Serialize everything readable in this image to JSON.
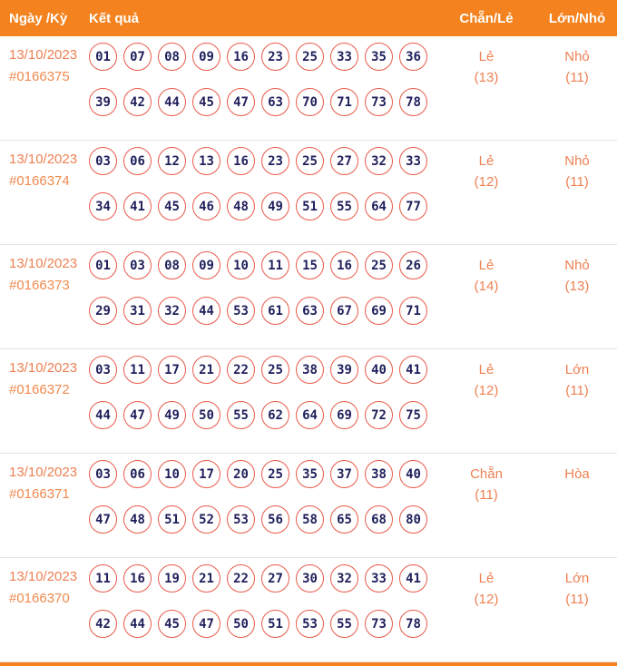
{
  "header": {
    "bg_color": "#F4831F",
    "columns": {
      "date": "Ngày /Kỳ",
      "results": "Kết quả",
      "parity": "Chẵn/Lẻ",
      "size": "Lớn/Nhỏ"
    }
  },
  "colors": {
    "accent_orange": "#F4831F",
    "text_salmon": "#EE8153",
    "ball_border": "#E85A4A",
    "ball_text": "#1F1F5C",
    "divider": "#E3E3E3"
  },
  "rows": [
    {
      "date": "13/10/2023",
      "draw_id": "#0166375",
      "numbers_line1": [
        "01",
        "07",
        "08",
        "09",
        "16",
        "23",
        "25",
        "33",
        "35",
        "36"
      ],
      "numbers_line2": [
        "39",
        "42",
        "44",
        "45",
        "47",
        "63",
        "70",
        "71",
        "73",
        "78"
      ],
      "parity": "Lẻ",
      "parity_count": "(13)",
      "size": "Nhỏ",
      "size_count": "(11)"
    },
    {
      "date": "13/10/2023",
      "draw_id": "#0166374",
      "numbers_line1": [
        "03",
        "06",
        "12",
        "13",
        "16",
        "23",
        "25",
        "27",
        "32",
        "33"
      ],
      "numbers_line2": [
        "34",
        "41",
        "45",
        "46",
        "48",
        "49",
        "51",
        "55",
        "64",
        "77"
      ],
      "parity": "Lẻ",
      "parity_count": "(12)",
      "size": "Nhỏ",
      "size_count": "(11)"
    },
    {
      "date": "13/10/2023",
      "draw_id": "#0166373",
      "numbers_line1": [
        "01",
        "03",
        "08",
        "09",
        "10",
        "11",
        "15",
        "16",
        "25",
        "26"
      ],
      "numbers_line2": [
        "29",
        "31",
        "32",
        "44",
        "53",
        "61",
        "63",
        "67",
        "69",
        "71"
      ],
      "parity": "Lẻ",
      "parity_count": "(14)",
      "size": "Nhỏ",
      "size_count": "(13)"
    },
    {
      "date": "13/10/2023",
      "draw_id": "#0166372",
      "numbers_line1": [
        "03",
        "11",
        "17",
        "21",
        "22",
        "25",
        "38",
        "39",
        "40",
        "41"
      ],
      "numbers_line2": [
        "44",
        "47",
        "49",
        "50",
        "55",
        "62",
        "64",
        "69",
        "72",
        "75"
      ],
      "parity": "Lẻ",
      "parity_count": "(12)",
      "size": "Lớn",
      "size_count": "(11)"
    },
    {
      "date": "13/10/2023",
      "draw_id": "#0166371",
      "numbers_line1": [
        "03",
        "06",
        "10",
        "17",
        "20",
        "25",
        "35",
        "37",
        "38",
        "40"
      ],
      "numbers_line2": [
        "47",
        "48",
        "51",
        "52",
        "53",
        "56",
        "58",
        "65",
        "68",
        "80"
      ],
      "parity": "Chẵn",
      "parity_count": "(11)",
      "size": "Hòa",
      "size_count": ""
    },
    {
      "date": "13/10/2023",
      "draw_id": "#0166370",
      "numbers_line1": [
        "11",
        "16",
        "19",
        "21",
        "22",
        "27",
        "30",
        "32",
        "33",
        "41"
      ],
      "numbers_line2": [
        "42",
        "44",
        "45",
        "47",
        "50",
        "51",
        "53",
        "55",
        "73",
        "78"
      ],
      "parity": "Lẻ",
      "parity_count": "(12)",
      "size": "Lớn",
      "size_count": "(11)"
    }
  ]
}
